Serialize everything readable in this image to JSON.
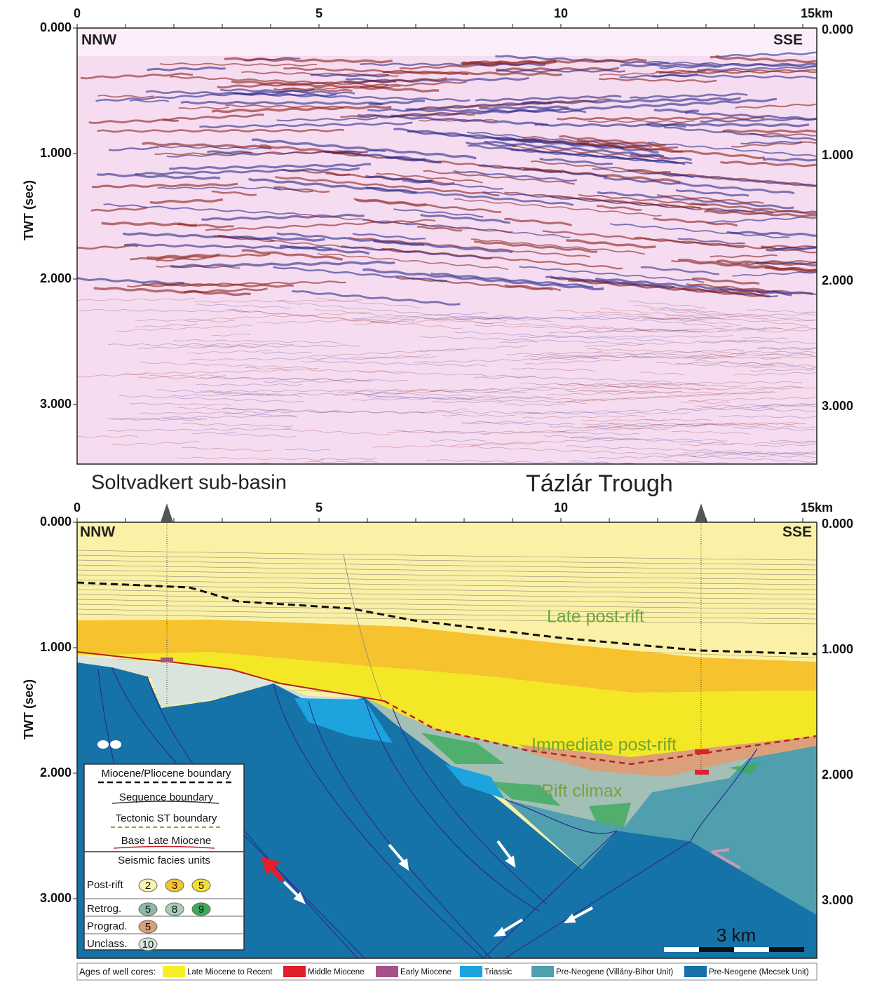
{
  "top_panel": {
    "x_ticks": [
      "0",
      "5",
      "10",
      "15km"
    ],
    "y_ticks_left": [
      "0.000",
      "1.000",
      "2.000",
      "3.000"
    ],
    "y_ticks_right": [
      "0.000",
      "1.000",
      "2.000",
      "3.000"
    ],
    "y_label": "TWT (sec)",
    "left_direction": "NNW",
    "right_direction": "SSE"
  },
  "bottom_panel": {
    "x_ticks": [
      "0",
      "5",
      "10",
      "15km"
    ],
    "y_ticks_left": [
      "0.000",
      "1.000",
      "2.000",
      "3.000"
    ],
    "y_ticks_right": [
      "0.000",
      "1.000",
      "2.000",
      "3.000"
    ],
    "y_label": "TWT (sec)",
    "left_direction": "NNW",
    "right_direction": "SSE",
    "areas": [
      "Soltvadkert sub-basin",
      "Tázlár Trough"
    ],
    "units": [
      "Late post-rift",
      "Immediate post-rift",
      "Rift climax"
    ],
    "scale_bar": "3 km"
  },
  "legend": {
    "lines": [
      "Miocene/Pliocene boundary",
      "Sequence boundary",
      "Tectonic ST boundary",
      "Base Late Miocene"
    ],
    "facies_title": "Seismic facies units",
    "facies_rows": [
      {
        "label": "Post-rift",
        "units": [
          "2",
          "3",
          "5"
        ],
        "colors": [
          "#fbf2b0",
          "#f5c230",
          "#f2e030"
        ]
      },
      {
        "label": "Retrog.",
        "units": [
          "5",
          "8",
          "9"
        ],
        "colors": [
          "#8fb8a8",
          "#a9cdb5",
          "#3bab5a"
        ]
      },
      {
        "label": "Prograd.",
        "units": [
          "5"
        ],
        "colors": [
          "#d9a07a"
        ]
      },
      {
        "label": "Unclass.",
        "units": [
          "10"
        ],
        "colors": [
          "#d8e6dc"
        ]
      }
    ]
  },
  "well_core_legend": {
    "title": "Ages of well cores:",
    "items": [
      {
        "label": "Late Miocene to Recent",
        "color": "#f7ee2a"
      },
      {
        "label": "Middle Miocene",
        "color": "#e0202a"
      },
      {
        "label": "Early Miocene",
        "color": "#a8508a"
      },
      {
        "label": "Triassic",
        "color": "#1da4de"
      },
      {
        "label": "Pre-Neogene (Villány-Bihor Unit)",
        "color": "#4f9fae"
      },
      {
        "label": "Pre-Neogene (Mecsek Unit)",
        "color": "#1673a8"
      }
    ]
  }
}
